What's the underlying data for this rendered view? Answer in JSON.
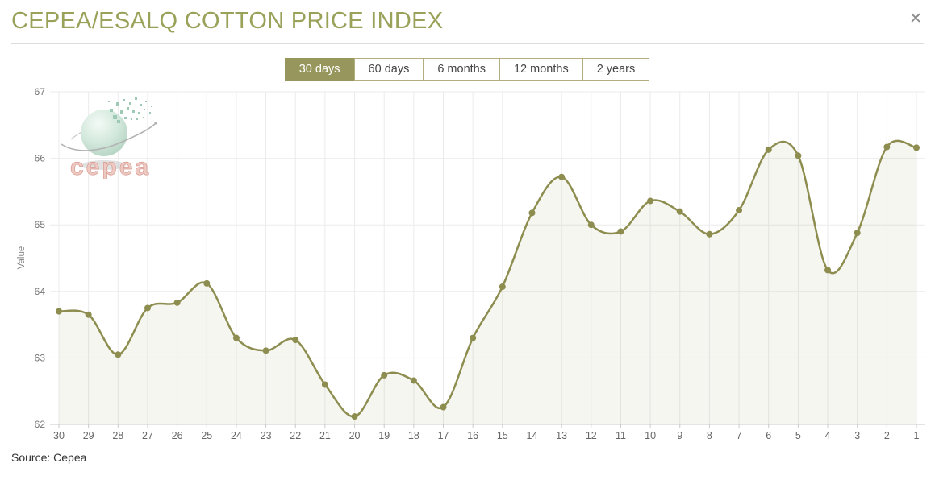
{
  "header": {
    "title": "CEPEA/ESALQ COTTON PRICE INDEX",
    "close_glyph": "✕"
  },
  "toolbar": {
    "active_index": 0,
    "buttons": [
      {
        "label": "30 days"
      },
      {
        "label": "60 days"
      },
      {
        "label": "6 months"
      },
      {
        "label": "12 months"
      },
      {
        "label": "2 years"
      }
    ]
  },
  "watermark": {
    "text": "cepea"
  },
  "chart_data": {
    "type": "line",
    "title": "CEPEA/ESALQ COTTON PRICE INDEX",
    "xlabel": "",
    "ylabel": "Value",
    "categories": [
      "30",
      "29",
      "28",
      "27",
      "26",
      "25",
      "24",
      "23",
      "22",
      "21",
      "20",
      "19",
      "18",
      "17",
      "16",
      "15",
      "14",
      "13",
      "12",
      "11",
      "10",
      "9",
      "8",
      "7",
      "6",
      "5",
      "4",
      "3",
      "2",
      "1"
    ],
    "series": [
      {
        "name": "CEPEA/ESALQ cotton price index",
        "values": [
          63.7,
          63.65,
          63.05,
          63.75,
          63.83,
          64.12,
          63.3,
          63.11,
          63.27,
          62.6,
          62.12,
          62.74,
          62.66,
          62.26,
          63.3,
          64.07,
          65.18,
          65.72,
          65.0,
          64.9,
          65.36,
          65.2,
          64.86,
          65.22,
          66.13,
          66.04,
          64.32,
          64.88,
          66.17,
          66.16
        ]
      }
    ],
    "ylim": [
      62,
      67
    ],
    "yticks": [
      62,
      63,
      64,
      65,
      66,
      67
    ],
    "grid": true,
    "legend": false,
    "marker": "circle"
  },
  "footer": {
    "source": "Source: Cepea"
  },
  "colors": {
    "accent": "#8d8d50",
    "title_text": "#9aa158",
    "active_button_bg": "#97975d",
    "area_fill": "rgba(141,141,80,0.08)",
    "grid": "#ebebeb",
    "axis_line": "#c9c9c9",
    "tick_text": "#777777",
    "x_tick_text": "#666666"
  }
}
